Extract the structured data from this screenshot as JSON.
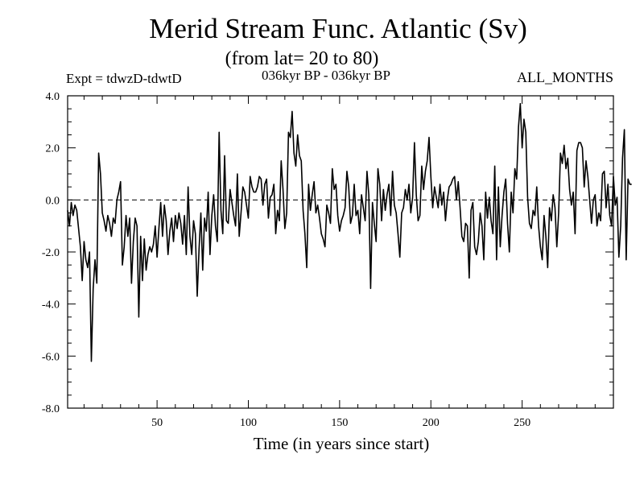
{
  "header": {
    "title": "Merid Stream Func. Atlantic (Sv)",
    "subtitle": "(from lat= 20 to 80)",
    "experiment": "Expt = tdwzD-tdwtD",
    "period": "036kyr BP - 036kyr BP",
    "months": "ALL_MONTHS"
  },
  "chart_data": {
    "type": "line",
    "title": "Merid Stream Func. Atlantic (Sv)",
    "subtitle": "(from lat= 20 to 80)",
    "xlabel": "Time (in years since start)",
    "ylabel": "",
    "xlim": [
      1,
      300
    ],
    "ylim": [
      -8.0,
      4.0
    ],
    "x_ticks": [
      50,
      100,
      150,
      200,
      250
    ],
    "y_ticks": [
      "-8.0",
      "-6.0",
      "-4.0",
      "-2.0",
      "0.0",
      "2.0",
      "4.0"
    ],
    "reference_line": {
      "y": 0.0,
      "style": "dashed"
    },
    "grid": false,
    "series": [
      {
        "x_start": 1,
        "x_step": 1,
        "values": [
          -0.4,
          -1.0,
          -0.1,
          -0.6,
          -0.2,
          -0.4,
          -1.1,
          -1.8,
          -3.1,
          -1.6,
          -2.3,
          -2.6,
          -2.0,
          -6.2,
          -3.4,
          -2.3,
          -3.2,
          1.8,
          1.0,
          -0.5,
          -0.8,
          -1.2,
          -0.6,
          -0.9,
          -1.4,
          -0.7,
          -0.9,
          0.0,
          0.3,
          0.7,
          -2.5,
          -1.8,
          -0.6,
          -1.4,
          -0.7,
          -3.2,
          -1.6,
          -0.7,
          -1.0,
          -4.5,
          -1.4,
          -3.1,
          -1.5,
          -2.7,
          -2.1,
          -1.8,
          -2.0,
          -1.7,
          -1.0,
          -2.2,
          -1.1,
          -0.1,
          -1.4,
          -0.2,
          -0.8,
          -2.1,
          -1.2,
          -0.7,
          -1.6,
          -0.6,
          -1.1,
          -0.5,
          -0.9,
          -1.7,
          -0.6,
          -2.1,
          0.5,
          -1.4,
          -2.1,
          -0.8,
          -1.3,
          -3.7,
          -1.9,
          -0.5,
          -2.7,
          -0.7,
          -1.2,
          0.3,
          -2.1,
          -0.6,
          0.2,
          -1.0,
          -1.6,
          2.6,
          -0.4,
          -1.3,
          1.7,
          -0.8,
          -0.9,
          0.4,
          -0.1,
          -0.6,
          -1.0,
          1.0,
          -1.4,
          -0.5,
          0.5,
          0.3,
          -0.2,
          -0.7,
          0.9,
          0.5,
          0.3,
          0.3,
          0.5,
          0.9,
          0.8,
          -0.2,
          0.6,
          0.8,
          -0.7,
          0.1,
          0.2,
          0.6,
          -1.3,
          -0.4,
          -0.8,
          1.5,
          0.4,
          -1.1,
          -0.5,
          2.6,
          2.4,
          3.4,
          1.8,
          1.3,
          2.5,
          1.7,
          1.5,
          -0.4,
          -1.3,
          -2.6,
          0.6,
          -0.4,
          0.2,
          0.7,
          -0.5,
          -0.2,
          -0.7,
          -1.3,
          -1.5,
          -1.8,
          -0.2,
          -0.5,
          -0.9,
          1.2,
          0.4,
          0.6,
          -0.6,
          -1.2,
          -0.8,
          -0.6,
          -0.3,
          1.1,
          0.5,
          -0.9,
          -0.6,
          0.6,
          -0.6,
          -0.4,
          -1.3,
          0.2,
          -0.3,
          -0.8,
          1.1,
          0.2,
          -3.4,
          -0.1,
          -0.9,
          -1.6,
          1.2,
          0.6,
          -0.8,
          0.4,
          -0.4,
          0.2,
          0.6,
          -0.6,
          1.1,
          -0.2,
          -0.5,
          -1.3,
          -2.2,
          -0.5,
          -0.3,
          0.4,
          0.0,
          0.6,
          -0.5,
          0.1,
          2.2,
          0.2,
          -0.8,
          -0.6,
          1.3,
          0.4,
          1.1,
          1.5,
          2.4,
          0.9,
          -0.3,
          0.5,
          0.1,
          -0.3,
          0.6,
          -0.2,
          0.3,
          -0.8,
          0.0,
          0.5,
          0.6,
          0.8,
          0.9,
          0.0,
          0.7,
          -0.3,
          -1.4,
          -1.6,
          -0.9,
          -1.0,
          -3.0,
          -0.4,
          -0.1,
          -1.8,
          -2.1,
          -1.6,
          -0.5,
          -1.0,
          -2.3,
          0.3,
          -0.7,
          0.1,
          -0.8,
          -1.3,
          1.3,
          -2.3,
          0.5,
          -1.8,
          -0.6,
          0.3,
          0.8,
          -0.9,
          -2.0,
          0.3,
          -0.5,
          1.2,
          0.8,
          2.8,
          3.7,
          2.0,
          3.1,
          2.6,
          0.1,
          -0.9,
          -1.1,
          -0.4,
          -0.6,
          0.5,
          -1.0,
          -1.8,
          -2.3,
          -0.6,
          -1.4,
          -2.6,
          -0.3,
          -0.8,
          0.2,
          -0.3,
          -1.8,
          -0.5,
          1.8,
          1.4,
          2.1,
          1.2,
          1.6,
          0.4,
          -0.2,
          0.3,
          -1.3,
          1.9,
          2.2,
          2.2,
          2.0,
          0.5,
          1.5,
          0.9,
          0.0,
          -0.9,
          0.0,
          0.2,
          -1.0,
          -0.5,
          -0.8,
          1.0,
          1.1,
          -0.3,
          0.6,
          -0.6,
          -1.0,
          0.9,
          -0.2,
          0.1,
          -2.2,
          -1.0,
          1.6,
          2.7,
          -2.3,
          0.8,
          0.6,
          0.6
        ]
      }
    ]
  }
}
